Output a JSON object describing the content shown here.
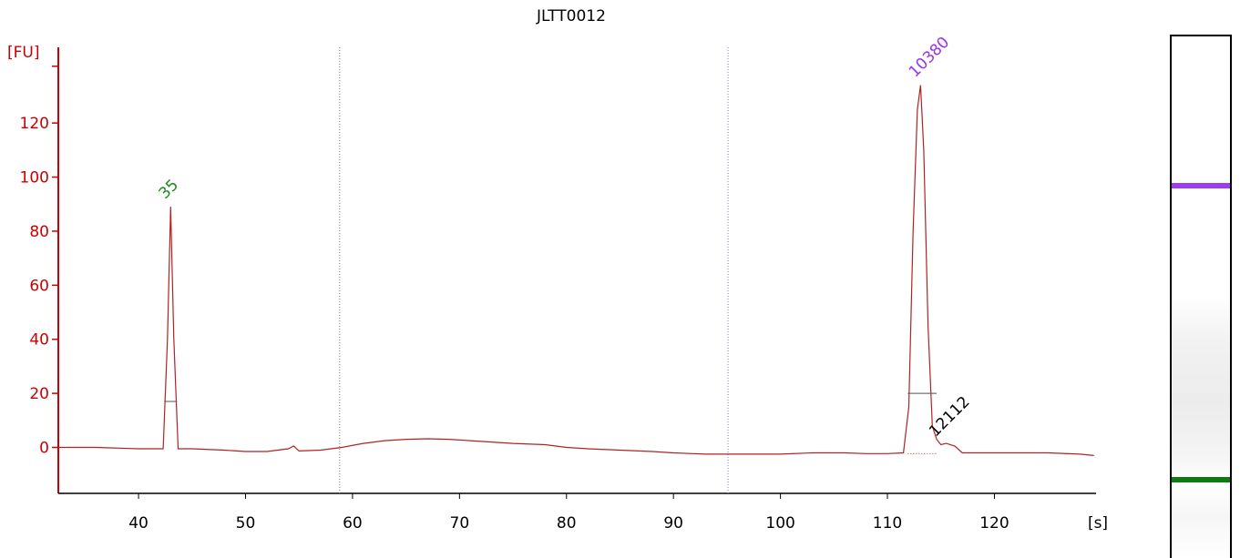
{
  "chart_data": {
    "type": "line",
    "title": "JLTT0012",
    "ylabel": "[FU]",
    "xlabel": "[s]",
    "xlim": [
      32.5,
      129.5
    ],
    "ylim": [
      -17,
      148
    ],
    "xticks": [
      40,
      50,
      60,
      70,
      80,
      90,
      100,
      110,
      120
    ],
    "yticks": [
      0,
      20,
      40,
      60,
      80,
      100,
      120
    ],
    "grid": false,
    "colors": {
      "trace": "#b22222",
      "axis": "#cc0000",
      "marker_green": "#1a8a1a",
      "marker_purple": "#9933ee"
    },
    "series": [
      {
        "x": [
          32.5,
          36,
          40,
          42.3,
          42.7,
          43.0,
          43.3,
          43.7,
          45,
          48,
          50,
          52,
          54,
          54.5,
          55,
          57,
          59,
          61,
          63,
          65,
          67,
          69,
          71,
          73,
          75,
          78,
          80,
          82,
          85,
          88,
          90,
          93,
          95,
          98,
          100,
          103,
          106,
          108,
          110,
          111.5,
          112.0,
          112.4,
          112.8,
          113.1,
          113.4,
          113.8,
          114.2,
          114.6,
          115.0,
          115.5,
          116.3,
          117,
          119,
          122,
          125,
          128,
          129.3
        ],
        "y": [
          0,
          0,
          -0.5,
          -0.5,
          40,
          89,
          40,
          -0.5,
          -0.5,
          -1,
          -1.5,
          -1.5,
          -0.5,
          0.5,
          -1.3,
          -1,
          0,
          1.5,
          2.5,
          3,
          3.2,
          3,
          2.5,
          2,
          1.5,
          1,
          0,
          -0.5,
          -1,
          -1.5,
          -2,
          -2.5,
          -2.5,
          -2.5,
          -2.5,
          -2,
          -2,
          -2.3,
          -2.3,
          -2,
          15,
          80,
          125,
          134,
          110,
          45,
          8,
          3,
          1,
          1.5,
          0.5,
          -2,
          -2,
          -2,
          -2,
          -2.5,
          -3
        ]
      }
    ],
    "vlines": [
      58.8,
      95.1
    ],
    "peak_labels": [
      {
        "x": 43.0,
        "y": 89,
        "text": "35",
        "color": "#1a8a1a"
      },
      {
        "x": 113.1,
        "y": 134,
        "text": "10380",
        "color": "#9933ee"
      },
      {
        "x": 115.0,
        "y": 1,
        "text": "12112",
        "color": "#000000"
      }
    ],
    "baselines": [
      {
        "x1": 42.4,
        "x2": 43.6,
        "y": 17
      },
      {
        "x1": 111.9,
        "x2": 114.6,
        "y": 20
      }
    ],
    "gel_bands": [
      "purple",
      "green"
    ]
  }
}
